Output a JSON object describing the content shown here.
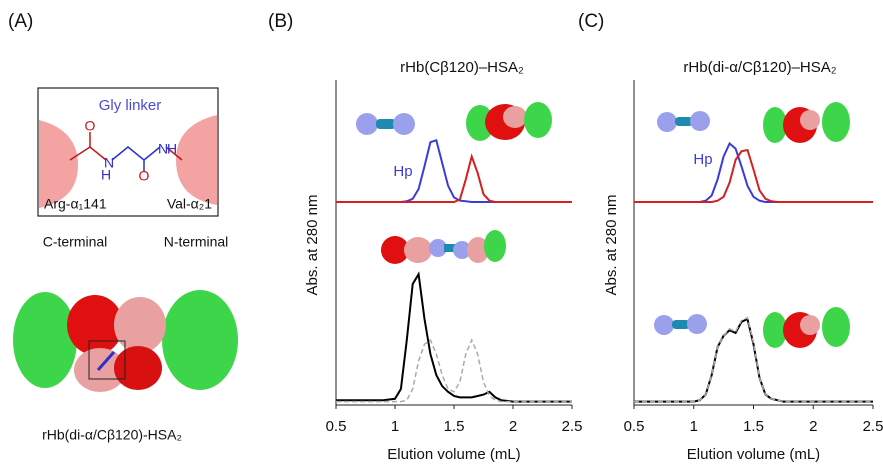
{
  "panel_a": {
    "label": "(A)",
    "linker": "Gly linker",
    "atoms": [
      "O",
      "N",
      "H",
      "O",
      "N",
      "H"
    ],
    "left_residue": "Arg-α₁141",
    "right_residue": "Val-α₂1",
    "left_terminal": "C-terminal",
    "right_terminal": "N-terminal",
    "caption": "rHb(di-α/Cβ120)-HSA₂"
  },
  "chart_data": [
    {
      "type": "line",
      "panel_label": "(B)",
      "title": "rHb(Cβ120)–HSA₂",
      "xlabel": "Elution volume (mL)",
      "ylabel": "Abs. at 280 nm",
      "annotation": "Hp",
      "xlim": [
        0.5,
        2.5
      ],
      "xticks": [
        0.5,
        1,
        1.5,
        2,
        2.5
      ],
      "ylim": [
        0,
        1
      ],
      "x": [
        0.5,
        0.9,
        1.0,
        1.05,
        1.1,
        1.15,
        1.2,
        1.25,
        1.3,
        1.35,
        1.4,
        1.45,
        1.5,
        1.55,
        1.6,
        1.65,
        1.7,
        1.75,
        1.8,
        1.85,
        1.9,
        2.0,
        2.2,
        2.5
      ],
      "series": [
        {
          "color": "#3b3bdc",
          "values": [
            0,
            0,
            0,
            0,
            0.01,
            0.05,
            0.2,
            0.55,
            0.92,
            0.95,
            0.6,
            0.25,
            0.07,
            0.02,
            0.01,
            0,
            0,
            0,
            0,
            0,
            0,
            0,
            0,
            0
          ]
        },
        {
          "color": "#d42020",
          "values": [
            0,
            0,
            0,
            0,
            0,
            0,
            0,
            0,
            0,
            0,
            0,
            0,
            0,
            0.04,
            0.35,
            0.7,
            0.45,
            0.12,
            0.02,
            0,
            0,
            0,
            0,
            0
          ]
        },
        {
          "color": "#000000",
          "values": [
            0.02,
            0.02,
            0.03,
            0.1,
            0.45,
            0.85,
            0.92,
            0.6,
            0.35,
            0.2,
            0.12,
            0.08,
            0.05,
            0.04,
            0.04,
            0.04,
            0.05,
            0.06,
            0.08,
            0.04,
            0.02,
            0.01,
            0.01,
            0.01
          ]
        },
        {
          "color": "#aaaaaa",
          "dashed": true,
          "values": [
            0.01,
            0.01,
            0.01,
            0.01,
            0.02,
            0.1,
            0.3,
            0.42,
            0.45,
            0.35,
            0.2,
            0.1,
            0.08,
            0.15,
            0.35,
            0.45,
            0.35,
            0.15,
            0.05,
            0.02,
            0.01,
            0.01,
            0.01,
            0.01
          ]
        }
      ]
    },
    {
      "type": "line",
      "panel_label": "(C)",
      "title": "rHb(di-α/Cβ120)–HSA₂",
      "xlabel": "Elution volume (mL)",
      "ylabel": "Abs. at 280 nm",
      "annotation": "Hp",
      "xlim": [
        0.5,
        2.5
      ],
      "xticks": [
        0.5,
        1,
        1.5,
        2,
        2.5
      ],
      "ylim": [
        0,
        1
      ],
      "x": [
        0.5,
        0.9,
        1.0,
        1.05,
        1.1,
        1.15,
        1.2,
        1.25,
        1.3,
        1.35,
        1.4,
        1.45,
        1.5,
        1.55,
        1.6,
        1.65,
        1.7,
        1.75,
        1.8,
        1.85,
        1.9,
        2.0,
        2.2,
        2.5
      ],
      "series": [
        {
          "color": "#3b3bdc",
          "values": [
            0,
            0,
            0,
            0,
            0.02,
            0.1,
            0.35,
            0.7,
            0.9,
            0.82,
            0.55,
            0.25,
            0.08,
            0.02,
            0,
            0,
            0,
            0,
            0,
            0,
            0,
            0,
            0,
            0
          ]
        },
        {
          "color": "#d42020",
          "values": [
            0,
            0,
            0,
            0,
            0,
            0,
            0.02,
            0.08,
            0.3,
            0.65,
            0.78,
            0.8,
            0.5,
            0.18,
            0.05,
            0.01,
            0,
            0,
            0,
            0,
            0,
            0,
            0,
            0
          ]
        },
        {
          "color": "#000000",
          "values": [
            0.01,
            0.01,
            0.01,
            0.02,
            0.06,
            0.2,
            0.4,
            0.48,
            0.52,
            0.5,
            0.58,
            0.6,
            0.42,
            0.18,
            0.06,
            0.03,
            0.02,
            0.01,
            0.01,
            0.01,
            0.01,
            0.01,
            0.01,
            0.01
          ]
        },
        {
          "color": "#aaaaaa",
          "dashed": true,
          "values": [
            0.01,
            0.01,
            0.01,
            0.02,
            0.06,
            0.2,
            0.4,
            0.48,
            0.53,
            0.51,
            0.59,
            0.61,
            0.43,
            0.18,
            0.06,
            0.03,
            0.02,
            0.01,
            0.01,
            0.01,
            0.01,
            0.01,
            0.01,
            0.01
          ]
        }
      ]
    }
  ]
}
